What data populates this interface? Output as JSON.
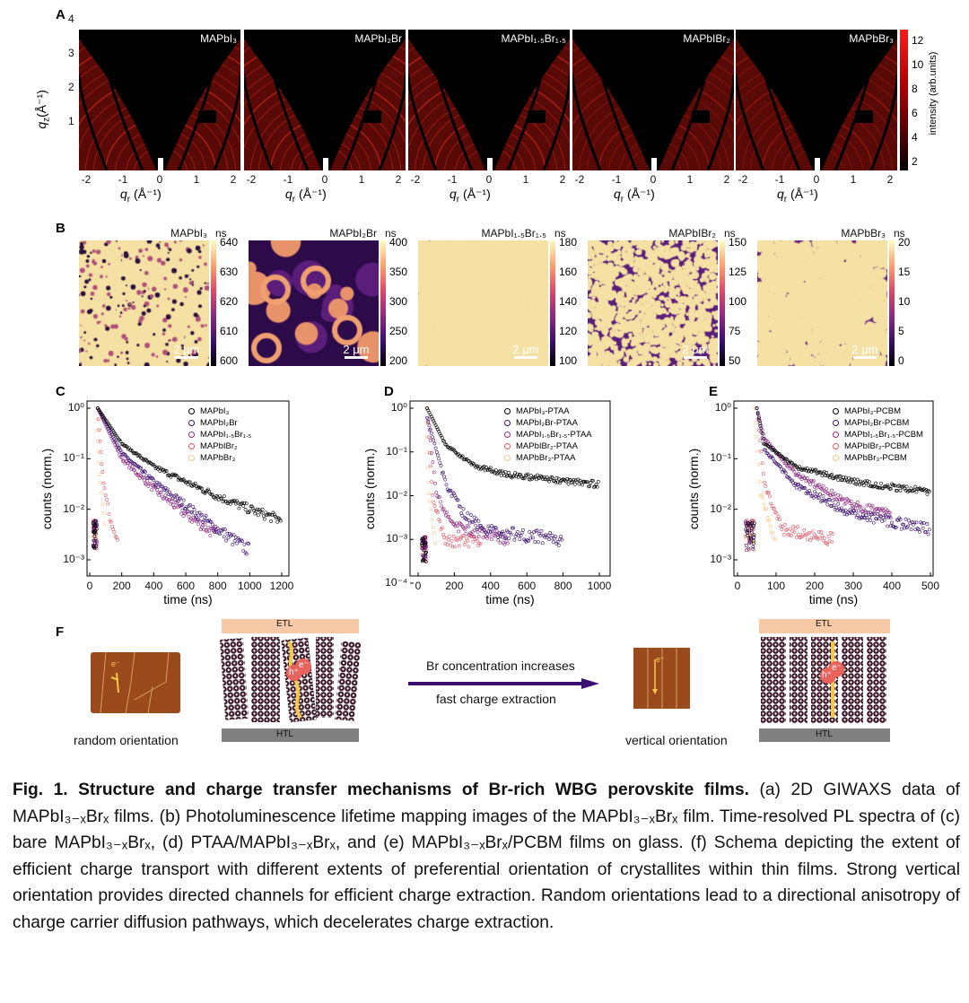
{
  "panel_labels": [
    "A",
    "B",
    "C",
    "D",
    "E",
    "F"
  ],
  "panel_a": {
    "titles": [
      "MAPbI₃",
      "MAPbI₂Br",
      "MAPbI₁.₅Br₁.₅",
      "MAPbIBr₂",
      "MAPbBr₃"
    ],
    "y_label": {
      "main": "q",
      "sub": "z",
      "rest": "(Å⁻¹)"
    },
    "x_label": {
      "main": "q",
      "sub": "r",
      "rest": " (Å⁻¹)"
    },
    "y_ticks": [
      "4",
      "3",
      "2",
      "1"
    ],
    "x_ticks": [
      "-2",
      "-1",
      "0",
      "1",
      "2"
    ],
    "colorbar": {
      "ticks": [
        "12",
        "10",
        "8",
        "6",
        "4",
        "2"
      ],
      "label": "intensity (arb.units)"
    }
  },
  "panel_b": {
    "maps": [
      {
        "title": "MAPbI₃",
        "unit": "ns",
        "ticks": [
          "640",
          "630",
          "620",
          "610",
          "600"
        ],
        "scale": "2 μm"
      },
      {
        "title": "MAPbI₂Br",
        "unit": "ns",
        "ticks": [
          "400",
          "350",
          "300",
          "250",
          "200"
        ],
        "scale": "2 μm"
      },
      {
        "title": "MAPbI₁.₅Br₁.₅",
        "unit": "ns",
        "ticks": [
          "180",
          "160",
          "140",
          "120",
          "100"
        ],
        "scale": "2 μm"
      },
      {
        "title": "MAPbIBr₂",
        "unit": "ns",
        "ticks": [
          "150",
          "125",
          "100",
          "75",
          "50"
        ],
        "scale": "2 μm"
      },
      {
        "title": "MAPbBr₃",
        "unit": "ns",
        "ticks": [
          "20",
          "15",
          "10",
          "5",
          "0"
        ],
        "scale": "2 μm"
      }
    ]
  },
  "colors": {
    "s1": "#000000",
    "s2": "#3b0f70",
    "s3": "#8c2981",
    "s4": "#e05a6a",
    "s5": "#f9c68a",
    "brown": "#9a4a1c",
    "etl": "#f8c9a6",
    "htl": "#808080",
    "arrow": "#3b0f70"
  },
  "chart_data": [
    {
      "type": "scatter",
      "panel": "C",
      "xlabel": "time (ns)",
      "ylabel": "counts (norm.)",
      "yscale": "log",
      "xlim": [
        0,
        1200
      ],
      "ylim": [
        0.0005,
        1
      ],
      "xticks": [
        "0",
        "200",
        "400",
        "600",
        "800",
        "1000",
        "1200"
      ],
      "yticks": [
        "10⁰",
        "10⁻¹",
        "10⁻²",
        "10⁻³"
      ],
      "legend_position": "top-right",
      "series": [
        {
          "name": "MAPbI₃",
          "points": [
            [
              50,
              1
            ],
            [
              200,
              0.2
            ],
            [
              400,
              0.07
            ],
            [
              600,
              0.035
            ],
            [
              800,
              0.018
            ],
            [
              1000,
              0.01
            ],
            [
              1200,
              0.006
            ]
          ]
        },
        {
          "name": "MAPbI₂Br",
          "points": [
            [
              50,
              1
            ],
            [
              200,
              0.13
            ],
            [
              400,
              0.035
            ],
            [
              600,
              0.012
            ],
            [
              800,
              0.004
            ],
            [
              1000,
              0.0015
            ]
          ]
        },
        {
          "name": "MAPbI₁.₅Br₁.₅",
          "points": [
            [
              50,
              1
            ],
            [
              200,
              0.1
            ],
            [
              400,
              0.025
            ],
            [
              600,
              0.008
            ],
            [
              800,
              0.003
            ]
          ]
        },
        {
          "name": "MAPbIBr₂",
          "points": [
            [
              50,
              1
            ],
            [
              80,
              0.05
            ],
            [
              120,
              0.008
            ],
            [
              180,
              0.002
            ]
          ]
        },
        {
          "name": "MAPbBr₃",
          "points": [
            [
              45,
              1
            ],
            [
              60,
              0.05
            ],
            [
              100,
              0.003
            ]
          ]
        }
      ]
    },
    {
      "type": "scatter",
      "panel": "D",
      "xlabel": "time (ns)",
      "ylabel": "counts (norm.)",
      "yscale": "log",
      "xlim": [
        0,
        1000
      ],
      "ylim": [
        0.0001,
        1
      ],
      "xticks": [
        "0",
        "200",
        "400",
        "600",
        "800",
        "1000"
      ],
      "yticks": [
        "10⁰",
        "10⁻¹",
        "10⁻²",
        "10⁻³",
        "10⁻⁴"
      ],
      "legend_position": "top-right",
      "series": [
        {
          "name": "MAPbI₃-PTAA",
          "points": [
            [
              50,
              1
            ],
            [
              150,
              0.15
            ],
            [
              300,
              0.05
            ],
            [
              500,
              0.03
            ],
            [
              800,
              0.022
            ],
            [
              1000,
              0.018
            ]
          ]
        },
        {
          "name": "MAPbI₂Br-PTAA",
          "points": [
            [
              50,
              0.6
            ],
            [
              150,
              0.02
            ],
            [
              250,
              0.004
            ],
            [
              400,
              0.0015
            ],
            [
              800,
              0.001
            ]
          ]
        },
        {
          "name": "MAPbI₁.₅Br₁.₅-PTAA",
          "points": [
            [
              50,
              1
            ],
            [
              100,
              0.01
            ],
            [
              200,
              0.002
            ],
            [
              500,
              0.001
            ]
          ]
        },
        {
          "name": "MAPbIBr₂-PTAA",
          "points": [
            [
              50,
              1
            ],
            [
              80,
              0.01
            ],
            [
              150,
              0.001
            ],
            [
              350,
              0.0008
            ]
          ]
        },
        {
          "name": "MAPbBr₃-PTAA",
          "points": [
            [
              45,
              1
            ],
            [
              60,
              0.01
            ],
            [
              100,
              0.0005
            ]
          ]
        }
      ]
    },
    {
      "type": "scatter",
      "panel": "E",
      "xlabel": "time (ns)",
      "ylabel": "counts (norm.)",
      "yscale": "log",
      "xlim": [
        0,
        500
      ],
      "ylim": [
        0.0005,
        1
      ],
      "xticks": [
        "0",
        "100",
        "200",
        "300",
        "400",
        "500"
      ],
      "yticks": [
        "10⁰",
        "10⁻¹",
        "10⁻²",
        "10⁻³"
      ],
      "legend_position": "top-right",
      "series": [
        {
          "name": "MAPbI₃-PCBM",
          "points": [
            [
              50,
              1
            ],
            [
              70,
              0.2
            ],
            [
              150,
              0.07
            ],
            [
              300,
              0.035
            ],
            [
              500,
              0.022
            ]
          ]
        },
        {
          "name": "MAPbI₂Br-PCBM",
          "points": [
            [
              50,
              1
            ],
            [
              70,
              0.15
            ],
            [
              150,
              0.03
            ],
            [
              300,
              0.008
            ],
            [
              500,
              0.004
            ]
          ]
        },
        {
          "name": "MAPbI₁.₅Br₁.₅-PCBM",
          "points": [
            [
              50,
              1
            ],
            [
              70,
              0.25
            ],
            [
              150,
              0.05
            ],
            [
              300,
              0.012
            ],
            [
              400,
              0.008
            ]
          ]
        },
        {
          "name": "MAPbIBr₂-PCBM",
          "points": [
            [
              50,
              1
            ],
            [
              70,
              0.03
            ],
            [
              120,
              0.004
            ],
            [
              250,
              0.0025
            ]
          ]
        },
        {
          "name": "MAPbBr₃-PCBM",
          "points": [
            [
              45,
              1
            ],
            [
              60,
              0.02
            ],
            [
              100,
              0.002
            ]
          ]
        }
      ]
    }
  ],
  "panel_f": {
    "etl": "ETL",
    "htl": "HTL",
    "electron": "e⁻",
    "hole": "h⁺",
    "left_caption": "random orientation",
    "right_caption": "vertical orientation",
    "arrow_top": "Br concentration increases",
    "arrow_bottom": "fast charge extraction"
  },
  "caption": {
    "title": "Fig. 1. Structure and charge transfer mechanisms of Br-rich WBG perovskite films.",
    "body": " (a) 2D GIWAXS data of MAPbI₃₋ₓBrₓ films. (b) Photoluminescence lifetime mapping images of the MAPbI₃₋ₓBrₓ film. Time-resolved PL spectra of (c) bare MAPbI₃₋ₓBrₓ, (d) PTAA/MAPbI₃₋ₓBrₓ, and (e) MAPbI₃₋ₓBrₓ/PCBM films on glass. (f) Schema depicting the extent of efficient charge transport with different extents of preferential orientation of crystallites within thin films. Strong vertical orientation provides directed channels for efficient charge extraction. Random orientations lead to a directional anisotropy of charge carrier diffusion pathways, which decelerates charge extraction."
  }
}
